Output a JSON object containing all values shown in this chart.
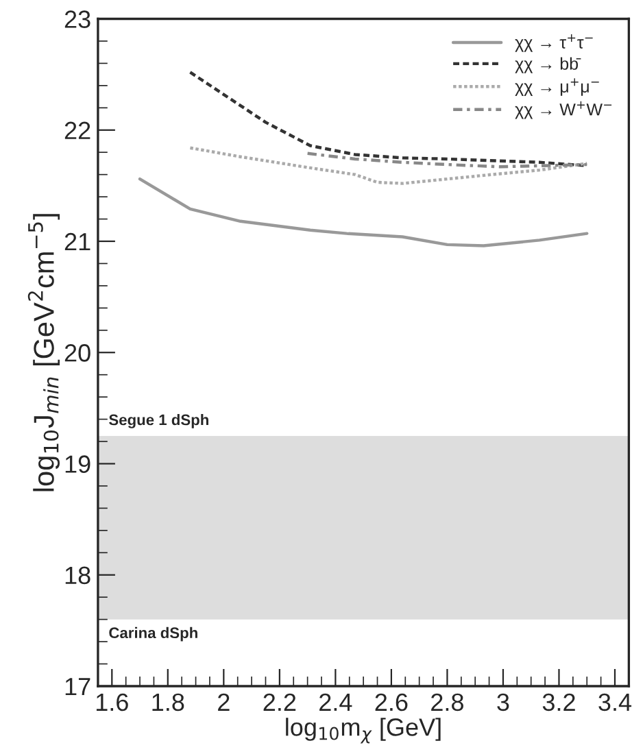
{
  "chart_data": {
    "type": "line",
    "xlabel": "log$_{10}$m$_{χ}$ [GeV]",
    "ylabel": "log$_{10}$J$_{min}$ [GeV$^{2}$cm$^{−5}$]",
    "xlim": [
      1.55,
      3.45
    ],
    "ylim": [
      17,
      23
    ],
    "xticks": [
      1.6,
      1.8,
      2,
      2.2,
      2.4,
      2.6,
      2.8,
      3,
      3.2,
      3.4
    ],
    "yticks": [
      17,
      18,
      19,
      20,
      21,
      22,
      23
    ],
    "grid": false,
    "legend": "top right",
    "marker": "none",
    "series": [
      {
        "name": "χχ → τ$^{+}$τ$^{−}$",
        "color": "#999999",
        "line_style": "solid",
        "x": [
          1.7,
          1.88,
          2.06,
          2.31,
          2.44,
          2.64,
          2.8,
          2.93,
          3.13,
          3.3
        ],
        "values": [
          21.56,
          21.29,
          21.18,
          21.1,
          21.07,
          21.04,
          20.97,
          20.96,
          21.01,
          21.07
        ]
      },
      {
        "name": "χχ → bb̄",
        "color": "#333333",
        "line_style": "dashed",
        "x": [
          1.88,
          2.0,
          2.15,
          2.31,
          2.47,
          2.64,
          2.8,
          3.13,
          3.3
        ],
        "values": [
          22.52,
          22.32,
          22.07,
          21.86,
          21.78,
          21.75,
          21.74,
          21.71,
          21.68
        ]
      },
      {
        "name": "χχ → μ$^{+}$μ$^{−}$",
        "color": "#aaaaaa",
        "line_style": "dotted",
        "x": [
          1.88,
          2.06,
          2.31,
          2.47,
          2.55,
          2.64,
          2.8,
          2.96,
          3.13,
          3.3
        ],
        "values": [
          21.84,
          21.76,
          21.66,
          21.6,
          21.53,
          21.52,
          21.56,
          21.6,
          21.64,
          21.7
        ]
      },
      {
        "name": "χχ → W$^{+}$W$^{−}$",
        "color": "#888888",
        "line_style": "dashdot",
        "x": [
          2.3,
          2.47,
          2.64,
          2.8,
          2.99,
          3.3
        ],
        "values": [
          21.79,
          21.74,
          21.71,
          21.69,
          21.67,
          21.69
        ]
      }
    ],
    "bands": [
      {
        "axis": "y",
        "from": 17.6,
        "to": 19.25,
        "color": "#dddddd"
      }
    ],
    "annotations": [
      "Segue 1 dSph",
      "Carina dSph"
    ]
  }
}
